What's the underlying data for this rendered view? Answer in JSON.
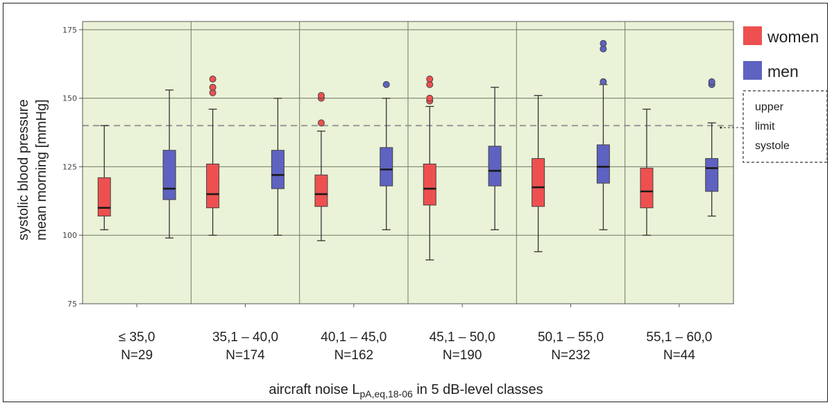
{
  "chart_data": {
    "type": "boxplot",
    "ylabel_line1": "systolic blood pressure",
    "ylabel_line2": "mean morning [mmHg]",
    "xlabel_main": "aircraft noise L",
    "xlabel_sub": "pA,eq,18-06",
    "xlabel_tail": " in 5 dB-level classes",
    "ylim": [
      75,
      178
    ],
    "yticks": [
      75,
      100,
      125,
      150,
      175
    ],
    "reference_line": {
      "value": 140,
      "label_lines": [
        "upper",
        "limit",
        "systole"
      ]
    },
    "categories": [
      {
        "label": "≤ 35,0",
        "n": "N=29"
      },
      {
        "label": "35,1 – 40,0",
        "n": "N=174"
      },
      {
        "label": "40,1 – 45,0",
        "n": "N=162"
      },
      {
        "label": "45,1 – 50,0",
        "n": "N=190"
      },
      {
        "label": "50,1 – 55,0",
        "n": "N=232"
      },
      {
        "label": "55,1 – 60,0",
        "n": "N=44"
      }
    ],
    "series": [
      {
        "name": "women",
        "color": "#ee5050",
        "boxes": [
          {
            "whisker_low": 102,
            "q1": 107,
            "median": 110,
            "q3": 121,
            "whisker_high": 140,
            "outliers": []
          },
          {
            "whisker_low": 100,
            "q1": 110,
            "median": 115,
            "q3": 126,
            "whisker_high": 146,
            "outliers": [
              152,
              154,
              157
            ]
          },
          {
            "whisker_low": 98,
            "q1": 110.5,
            "median": 115,
            "q3": 122,
            "whisker_high": 138,
            "outliers": [
              141,
              150,
              151
            ]
          },
          {
            "whisker_low": 91,
            "q1": 111,
            "median": 117,
            "q3": 126,
            "whisker_high": 147,
            "outliers": [
              149,
              150,
              155,
              157
            ]
          },
          {
            "whisker_low": 94,
            "q1": 110.5,
            "median": 117.5,
            "q3": 128,
            "whisker_high": 151,
            "outliers": []
          },
          {
            "whisker_low": 100,
            "q1": 110,
            "median": 116,
            "q3": 124.5,
            "whisker_high": 146,
            "outliers": []
          }
        ]
      },
      {
        "name": "men",
        "color": "#5e62c0",
        "boxes": [
          {
            "whisker_low": 99,
            "q1": 113,
            "median": 117,
            "q3": 131,
            "whisker_high": 153,
            "outliers": []
          },
          {
            "whisker_low": 100,
            "q1": 117,
            "median": 122,
            "q3": 131,
            "whisker_high": 150,
            "outliers": []
          },
          {
            "whisker_low": 102,
            "q1": 118,
            "median": 124,
            "q3": 132,
            "whisker_high": 150,
            "outliers": [
              155
            ]
          },
          {
            "whisker_low": 102,
            "q1": 118,
            "median": 123.5,
            "q3": 132.5,
            "whisker_high": 154,
            "outliers": []
          },
          {
            "whisker_low": 102,
            "q1": 119,
            "median": 125,
            "q3": 133,
            "whisker_high": 155,
            "outliers": [
              156,
              168,
              170
            ]
          },
          {
            "whisker_low": 107,
            "q1": 116,
            "median": 124.5,
            "q3": 128,
            "whisker_high": 141,
            "outliers": [
              155,
              156
            ]
          }
        ]
      }
    ],
    "colors": {
      "plot_background": "#eaf2d7",
      "grid": "#6f7a68",
      "reference": "#9a9a9a"
    },
    "grid": true,
    "legend_position": "right"
  }
}
